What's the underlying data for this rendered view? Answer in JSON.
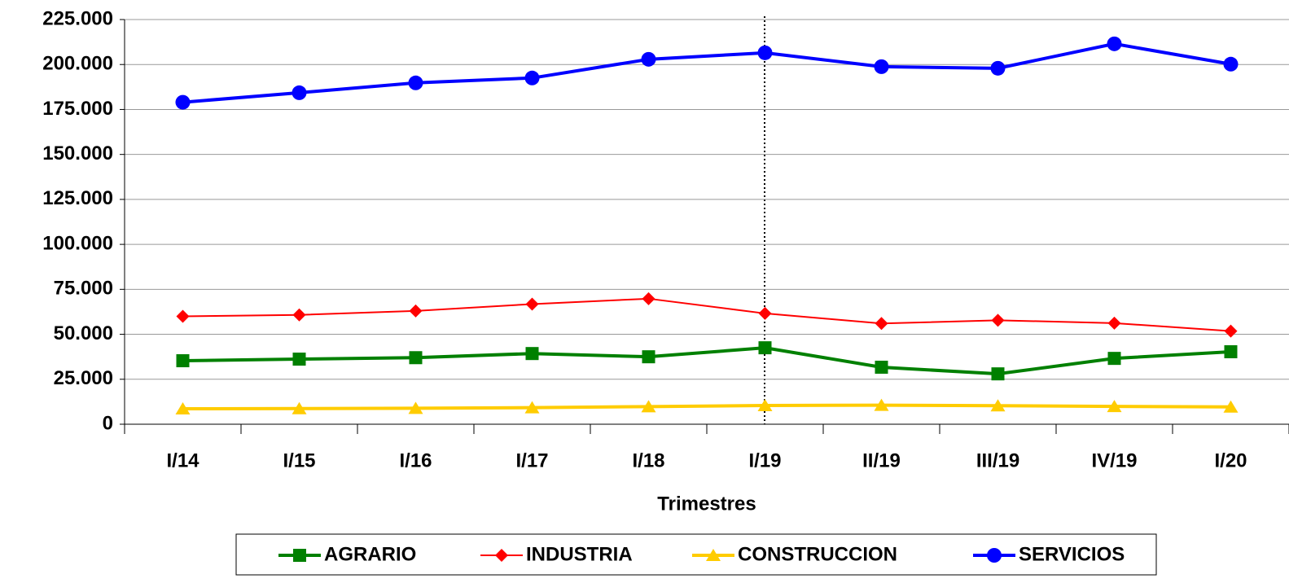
{
  "chart_data": {
    "type": "line",
    "x_label": "Trimestres",
    "categories": [
      "I/14",
      "I/15",
      "I/16",
      "I/17",
      "I/18",
      "I/19",
      "II/19",
      "III/19",
      "IV/19",
      "I/20"
    ],
    "series": [
      {
        "name": "AGRARIO",
        "color": "#008000",
        "marker": "square",
        "values": [
          35300,
          36200,
          37000,
          39300,
          37500,
          42500,
          31700,
          28000,
          36600,
          40300
        ]
      },
      {
        "name": "INDUSTRIA",
        "color": "#ff0000",
        "marker": "diamond",
        "values": [
          60000,
          60800,
          63000,
          66800,
          69800,
          61600,
          56000,
          57800,
          56200,
          51800
        ]
      },
      {
        "name": "CONSTRUCCION",
        "color": "#ffcc00",
        "marker": "triangle",
        "values": [
          8600,
          8700,
          8900,
          9200,
          9800,
          10400,
          10600,
          10300,
          9900,
          9600
        ]
      },
      {
        "name": "SERVICIOS",
        "color": "#0000ff",
        "marker": "circle",
        "values": [
          179000,
          184300,
          189800,
          192500,
          202900,
          206500,
          198800,
          197900,
          211500,
          200200
        ]
      }
    ],
    "ylim": [
      0,
      225000
    ],
    "yticks": [
      0,
      {
        "value": 25000,
        "label": "25.000"
      },
      {
        "value": 50000,
        "label": "50.000"
      },
      {
        "value": 75000,
        "label": "75.000"
      },
      {
        "value": 100000,
        "label": "100.000"
      },
      {
        "value": 125000,
        "label": "125.000"
      },
      {
        "value": 150000,
        "label": "150.000"
      },
      {
        "value": 175000,
        "label": "175.000"
      },
      {
        "value": 200000,
        "label": "200.000"
      },
      {
        "value": 225000,
        "label": "225.000"
      }
    ],
    "grid": true
  }
}
